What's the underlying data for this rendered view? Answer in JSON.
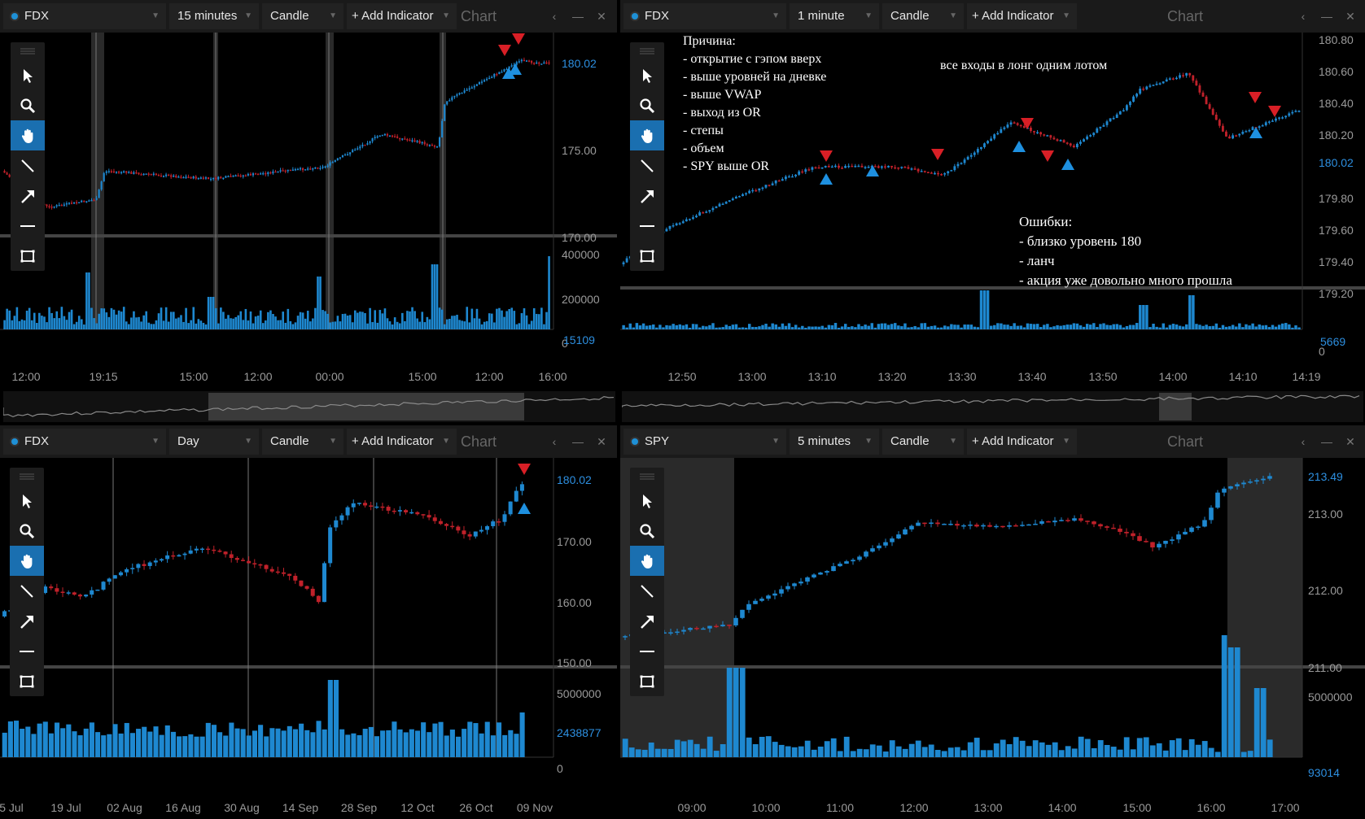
{
  "common": {
    "add_indicator": "+ Add Indicator",
    "chart_title": "Chart",
    "ctrl_back": "‹",
    "ctrl_min": "—",
    "ctrl_close": "✕",
    "tools": [
      "pointer-icon",
      "zoom-icon",
      "hand-icon",
      "line-icon",
      "arrow-icon",
      "horizontal-line-icon",
      "rectangle-icon"
    ],
    "colors": {
      "up": "#1e88d0",
      "down": "#c0212a",
      "bg": "#000000",
      "toolbar": "#1a1a1a",
      "active_tool": "#1a6fb0"
    }
  },
  "panes": {
    "tl": {
      "symbol": "FDX",
      "interval": "15 minutes",
      "type": "Candle",
      "price_ticks": [
        "175.00",
        "170.00"
      ],
      "current_price": "180.02",
      "volume_ticks": [
        "400000",
        "200000",
        "0"
      ],
      "current_volume": "15109",
      "x_ticks": [
        "12:00",
        "19:15",
        "15:00",
        "12:00",
        "00:00",
        "15:00",
        "12:00",
        "16:00"
      ]
    },
    "tr": {
      "symbol": "FDX",
      "interval": "1 minute",
      "type": "Candle",
      "price_ticks": [
        "180.80",
        "180.60",
        "180.40",
        "180.20",
        "179.80",
        "179.60",
        "179.40",
        "179.20"
      ],
      "current_price": "180.02",
      "volume_ticks": [
        "0"
      ],
      "current_volume": "5669",
      "x_ticks": [
        "12:50",
        "13:00",
        "13:10",
        "13:20",
        "13:30",
        "13:40",
        "13:50",
        "14:00",
        "14:10",
        "14:19"
      ],
      "notes": {
        "reasons": "Причина:\n- открытие с гэпом вверх\n- выше уровней на дневке\n- выше VWAP\n- выход из OR\n- степы\n- объем\n- SPY выше OR",
        "entries": "все входы в лонг одним лотом",
        "errors": "Ошибки:\n- близко уровень 180\n- ланч\n- акция уже довольно много прошла"
      }
    },
    "bl": {
      "symbol": "FDX",
      "interval": "Day",
      "type": "Candle",
      "price_ticks": [
        "170.00",
        "160.00",
        "150.00"
      ],
      "current_price": "180.02",
      "volume_ticks": [
        "5000000",
        "0"
      ],
      "current_volume": "2438877",
      "x_ticks": [
        "5 Jul",
        "19 Jul",
        "02 Aug",
        "16 Aug",
        "30 Aug",
        "14 Sep",
        "28 Sep",
        "12 Oct",
        "26 Oct",
        "09 Nov"
      ]
    },
    "br": {
      "symbol": "SPY",
      "interval": "5 minutes",
      "type": "Candle",
      "price_ticks": [
        "213.00",
        "212.00",
        "211.00"
      ],
      "current_price": "213.49",
      "volume_ticks": [
        "5000000"
      ],
      "current_volume": "93014",
      "x_ticks": [
        "09:00",
        "10:00",
        "11:00",
        "12:00",
        "13:00",
        "14:00",
        "15:00",
        "16:00",
        "17:00"
      ]
    }
  }
}
